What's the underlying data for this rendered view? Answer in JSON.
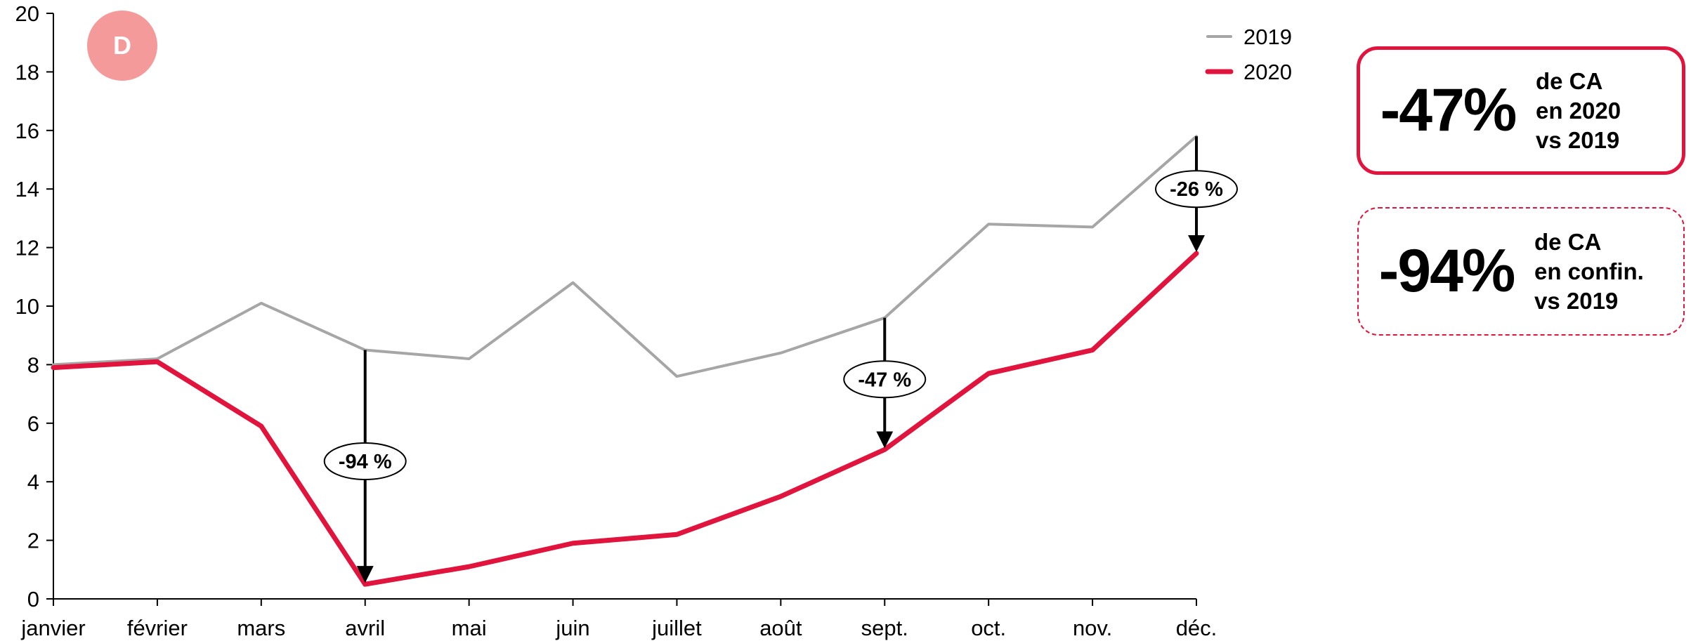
{
  "badge": {
    "label": "D",
    "color": "#f59a9a"
  },
  "chart_data": {
    "type": "line",
    "categories": [
      "janvier",
      "février",
      "mars",
      "avril",
      "mai",
      "juin",
      "juillet",
      "août",
      "sept.",
      "oct.",
      "nov.",
      "déc."
    ],
    "series": [
      {
        "name": "2019",
        "color": "#a6a6a6",
        "values": [
          8.0,
          8.2,
          10.1,
          8.5,
          8.2,
          10.8,
          7.6,
          8.4,
          9.6,
          12.8,
          12.7,
          15.8
        ]
      },
      {
        "name": "2020",
        "color": "#e0143c",
        "values": [
          7.9,
          8.1,
          5.9,
          0.5,
          1.1,
          1.9,
          2.2,
          3.5,
          5.1,
          7.7,
          8.5,
          11.8
        ]
      }
    ],
    "ylim": [
      0,
      20
    ],
    "yticks": [
      0,
      2,
      4,
      6,
      8,
      10,
      12,
      14,
      16,
      18,
      20
    ],
    "annotations": [
      {
        "category": "avril",
        "label": "-94 %",
        "label_value": 4.7
      },
      {
        "category": "sept.",
        "label": "-47 %",
        "label_value": 7.5
      },
      {
        "category": "déc.",
        "label": "-26 %",
        "label_value": 14.0
      }
    ],
    "legend_position": "top-right",
    "grid": false,
    "xlabel": "",
    "ylabel": "",
    "title": ""
  },
  "kpis": [
    {
      "value": "-47%",
      "lines": [
        "de CA",
        "en 2020",
        "vs 2019"
      ],
      "style": "solid"
    },
    {
      "value": "-94%",
      "lines": [
        "de CA",
        "en confin.",
        "vs 2019"
      ],
      "style": "dashed"
    }
  ],
  "accent_color": "#e0143c"
}
